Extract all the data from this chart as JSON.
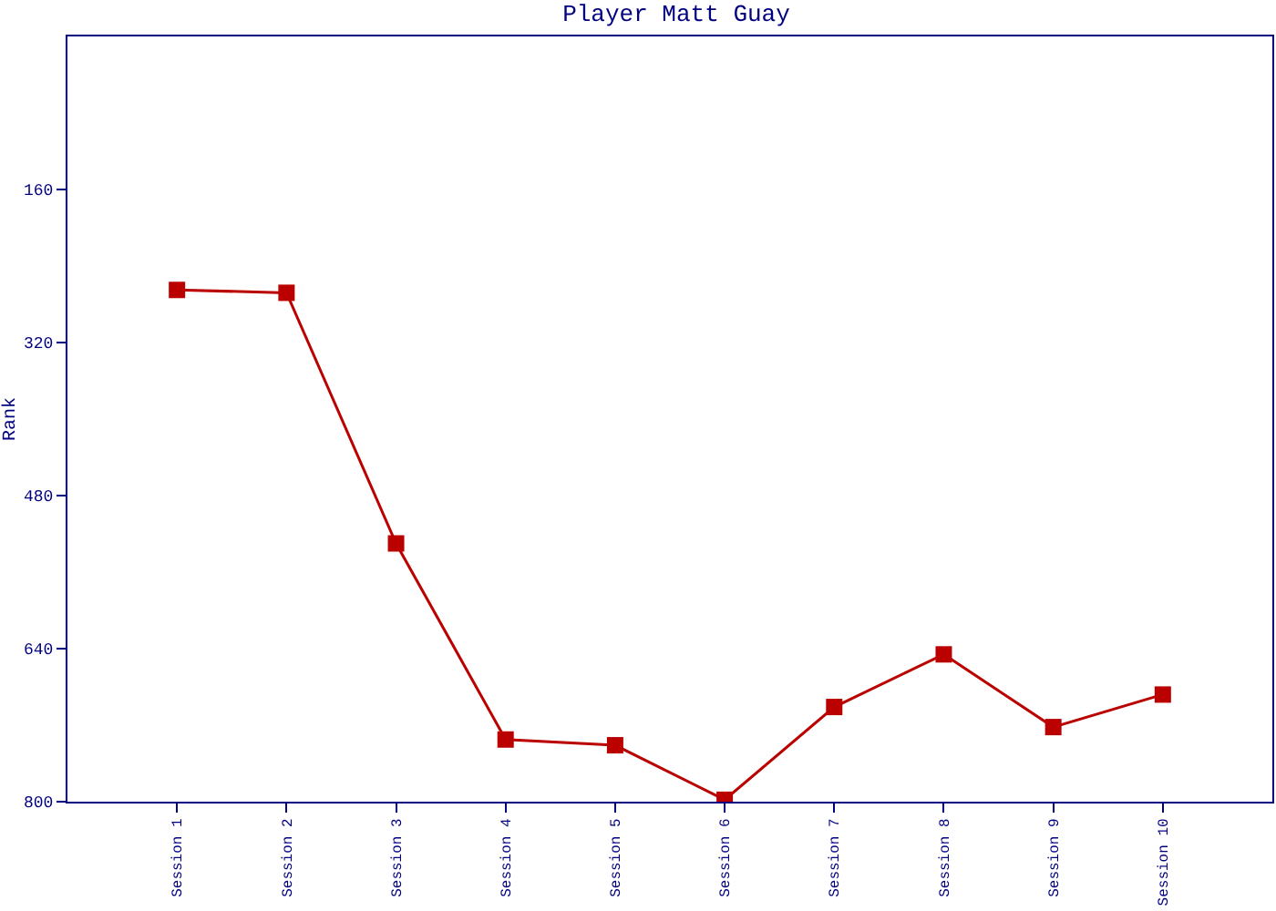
{
  "chart_data": {
    "type": "line",
    "title": "Player Matt Guay",
    "ylabel": "Rank",
    "categories": [
      "Session 1",
      "Session 2",
      "Session 3",
      "Session 4",
      "Session 5",
      "Session 6",
      "Session 7",
      "Session 8",
      "Session 9",
      "Session 10"
    ],
    "series": [
      {
        "color": "#bb0000",
        "values": [
          265,
          268,
          530,
          735,
          741,
          798,
          701,
          646,
          722,
          688
        ]
      }
    ],
    "ylim": [
      800,
      0
    ],
    "yticks": [
      160,
      320,
      480,
      640,
      800
    ],
    "grid": false,
    "marker": "square",
    "line_style": "solid"
  }
}
